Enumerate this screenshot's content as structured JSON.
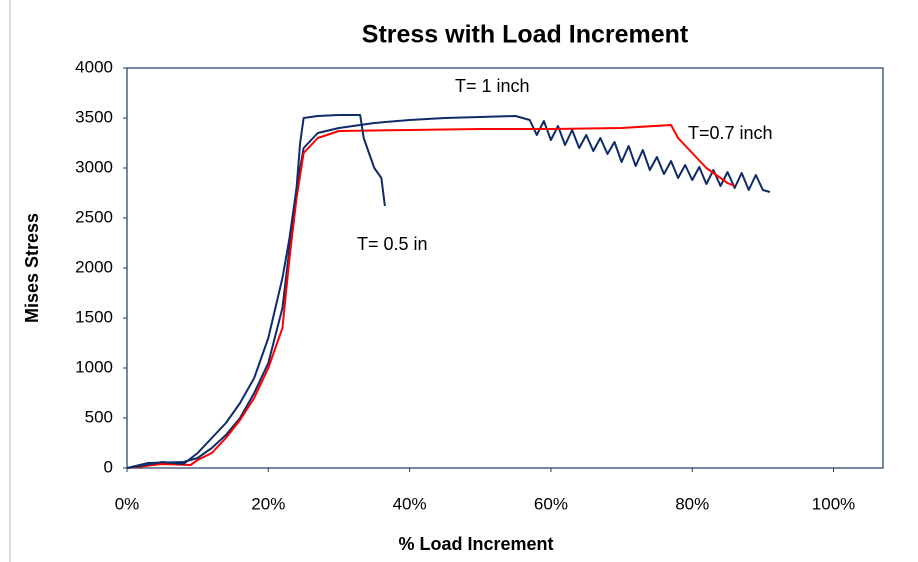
{
  "chart_data": {
    "type": "line",
    "title": "Stress with Load Increment",
    "xlabel": "% Load Increment",
    "ylabel": "Mises Stress",
    "xlim": [
      0,
      107
    ],
    "ylim": [
      0,
      4000
    ],
    "xticks": [
      {
        "value": 0,
        "label": "0%"
      },
      {
        "value": 20,
        "label": "20%"
      },
      {
        "value": 40,
        "label": "40%"
      },
      {
        "value": 60,
        "label": "60%"
      },
      {
        "value": 80,
        "label": "80%"
      },
      {
        "value": 100,
        "label": "100%"
      }
    ],
    "yticks": [
      0,
      500,
      1000,
      1500,
      2000,
      2500,
      3000,
      3500,
      4000
    ],
    "grid": false,
    "series": [
      {
        "name": "T= 1 inch",
        "color": "#0e2b6a",
        "x": [
          0,
          3,
          8,
          10,
          12,
          14,
          16,
          18,
          20,
          22,
          23,
          24,
          25,
          27,
          30,
          35,
          40,
          45,
          50,
          55,
          57,
          58,
          59,
          60,
          61,
          62,
          63,
          64,
          65,
          66,
          67,
          68,
          69,
          70,
          71,
          72,
          73,
          74,
          75,
          76,
          77,
          78,
          79,
          80,
          81,
          82,
          83,
          84,
          85,
          86,
          87,
          88,
          89,
          90,
          91
        ],
        "values": [
          0,
          50,
          60,
          100,
          200,
          330,
          500,
          750,
          1050,
          1600,
          2200,
          2800,
          3200,
          3350,
          3400,
          3450,
          3480,
          3500,
          3510,
          3520,
          3480,
          3330,
          3470,
          3280,
          3420,
          3230,
          3380,
          3200,
          3330,
          3170,
          3300,
          3140,
          3260,
          3060,
          3220,
          3020,
          3180,
          2980,
          3110,
          2940,
          3070,
          2900,
          3030,
          2880,
          3010,
          2840,
          2980,
          2820,
          2960,
          2800,
          2950,
          2780,
          2930,
          2780,
          2760
        ]
      },
      {
        "name": "T=0.7 inch",
        "color": "#ff0000",
        "x": [
          0,
          5,
          9,
          10,
          12,
          14,
          16,
          18,
          20,
          22,
          23,
          24,
          25,
          27,
          30,
          40,
          50,
          60,
          70,
          77,
          78,
          80,
          82,
          85,
          86
        ],
        "values": [
          0,
          40,
          30,
          80,
          150,
          300,
          480,
          700,
          1000,
          1400,
          2100,
          2700,
          3150,
          3300,
          3370,
          3380,
          3390,
          3390,
          3400,
          3430,
          3300,
          3150,
          3000,
          2850,
          2820
        ]
      },
      {
        "name": "T= 0.5 in",
        "color": "#0e2b6a",
        "x": [
          0,
          5,
          8,
          10,
          12,
          14,
          16,
          18,
          20,
          22,
          23,
          24,
          24.5,
          25,
          27,
          30,
          33,
          33.5,
          35,
          36,
          36.5
        ],
        "values": [
          0,
          60,
          40,
          150,
          300,
          450,
          650,
          900,
          1300,
          1900,
          2300,
          2800,
          3250,
          3500,
          3520,
          3530,
          3530,
          3300,
          3000,
          2900,
          2620
        ]
      }
    ]
  }
}
